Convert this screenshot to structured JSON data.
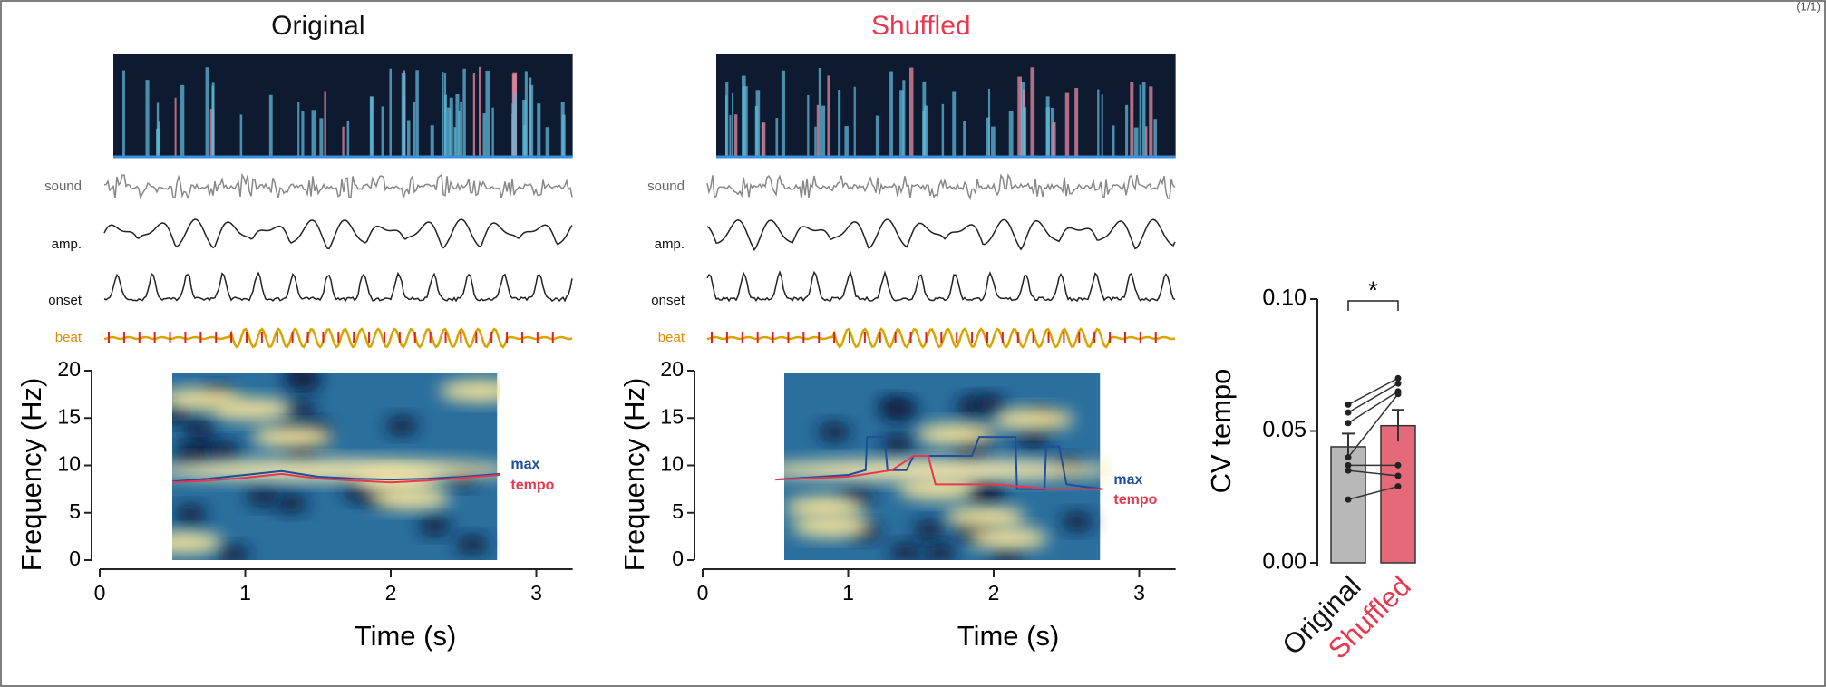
{
  "page_label": "(1/1)",
  "chart_data": [
    {
      "type": "spectrogram",
      "title": "Original",
      "title_color": "#111111",
      "row_labels": [
        "sound",
        "amp.",
        "onset",
        "beat"
      ],
      "xlabel": "Time (s)",
      "ylabel": "Frequency (Hz)",
      "xlim": [
        0,
        3.25
      ],
      "xticks": [
        0,
        1,
        2,
        3
      ],
      "ylim": [
        0,
        20
      ],
      "yticks": [
        0,
        5,
        10,
        15,
        20
      ],
      "series": [
        {
          "name": "max",
          "color": "#1f4e9a",
          "x": [
            0.5,
            0.75,
            1.0,
            1.25,
            1.5,
            1.75,
            2.0,
            2.25,
            2.5,
            2.75
          ],
          "values": [
            8.3,
            8.6,
            9.0,
            9.4,
            8.8,
            8.6,
            8.5,
            8.6,
            8.8,
            9.1
          ]
        },
        {
          "name": "tempo",
          "color": "#e8384f",
          "x": [
            0.5,
            0.75,
            1.0,
            1.25,
            1.5,
            1.75,
            2.0,
            2.25,
            2.5,
            2.75
          ],
          "values": [
            8.2,
            8.4,
            8.7,
            9.1,
            8.6,
            8.4,
            8.2,
            8.4,
            8.7,
            9.0
          ]
        }
      ]
    },
    {
      "type": "spectrogram",
      "title": "Shuffled",
      "title_color": "#e8384f",
      "row_labels": [
        "sound",
        "amp.",
        "onset",
        "beat"
      ],
      "xlabel": "Time (s)",
      "ylabel": "Frequency (Hz)",
      "xlim": [
        0,
        3.25
      ],
      "xticks": [
        0,
        1,
        2,
        3
      ],
      "ylim": [
        0,
        20
      ],
      "yticks": [
        0,
        5,
        10,
        15,
        20
      ],
      "series": [
        {
          "name": "max",
          "color": "#1f4e9a",
          "x": [
            0.5,
            1.0,
            1.12,
            1.13,
            1.25,
            1.27,
            1.4,
            1.45,
            1.85,
            1.9,
            2.15,
            2.16,
            2.35,
            2.36,
            2.45,
            2.5,
            2.75
          ],
          "values": [
            8.5,
            9.0,
            9.5,
            13.0,
            13.0,
            9.5,
            9.5,
            11.0,
            11.0,
            13.0,
            13.0,
            7.5,
            7.5,
            12.0,
            12.0,
            8.0,
            7.5
          ]
        },
        {
          "name": "tempo",
          "color": "#e8384f",
          "x": [
            0.5,
            1.0,
            1.3,
            1.45,
            1.55,
            1.6,
            2.0,
            2.4,
            2.75
          ],
          "values": [
            8.5,
            8.8,
            9.5,
            11.0,
            11.0,
            8.0,
            8.0,
            7.5,
            7.5
          ]
        }
      ]
    },
    {
      "type": "bar",
      "ylabel": "CV tempo",
      "categories": [
        "Original",
        "Shuffled"
      ],
      "category_colors": [
        "#111111",
        "#e8384f"
      ],
      "colors": [
        "#b8b8b8",
        "#e46a7a"
      ],
      "values": [
        0.044,
        0.052
      ],
      "errors": [
        0.005,
        0.006
      ],
      "paired": [
        [
          0.06,
          0.07
        ],
        [
          0.057,
          0.068
        ],
        [
          0.053,
          0.065
        ],
        [
          0.04,
          0.064
        ],
        [
          0.037,
          0.037
        ],
        [
          0.035,
          0.033
        ],
        [
          0.024,
          0.029
        ]
      ],
      "ylim": [
        0,
        0.1
      ],
      "yticks": [
        {
          "value": 0,
          "label": "0.00"
        },
        {
          "value": 0.05,
          "label": "0.05"
        },
        {
          "value": 0.1,
          "label": "0.10"
        }
      ],
      "annotation": "*"
    }
  ]
}
